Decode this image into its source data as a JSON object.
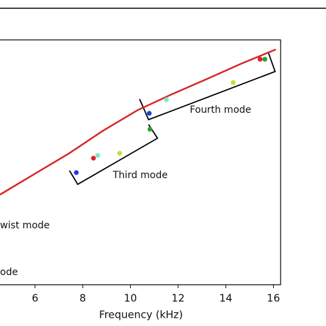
{
  "chart_data": {
    "type": "scatter",
    "xlabel": "Frequency (kHz)",
    "xlim": [
      4.5,
      16.3
    ],
    "xticks": [
      6,
      8,
      10,
      12,
      14,
      16
    ],
    "ylim": [
      0,
      100
    ],
    "curve": {
      "color": "#d62728",
      "x": [
        4.53,
        5.97,
        7.4,
        8.85,
        10.3,
        11.74,
        13.2,
        14.63,
        16.1
      ],
      "y": [
        36.8,
        45.2,
        53.5,
        62.9,
        71.3,
        77.8,
        84.0,
        90.2,
        96.1
      ]
    },
    "points": {
      "x": [
        7.73,
        8.45,
        8.63,
        9.55,
        10.79,
        10.82,
        11.51,
        14.31,
        15.44,
        15.64
      ],
      "y": [
        45.8,
        51.7,
        52.8,
        53.7,
        70.0,
        63.5,
        75.6,
        82.6,
        92.1,
        92.1
      ],
      "colors": [
        "#1f3fe0",
        "#e0202a",
        "#7fe8c0",
        "#b8e23a",
        "#1f3fe0",
        "#2ca02c",
        "#7fe8c0",
        "#b8e23a",
        "#e0202a",
        "#2ca02c"
      ]
    },
    "annotations": [
      "Third mode",
      "Fourth mode",
      "wist mode",
      "ode"
    ]
  }
}
